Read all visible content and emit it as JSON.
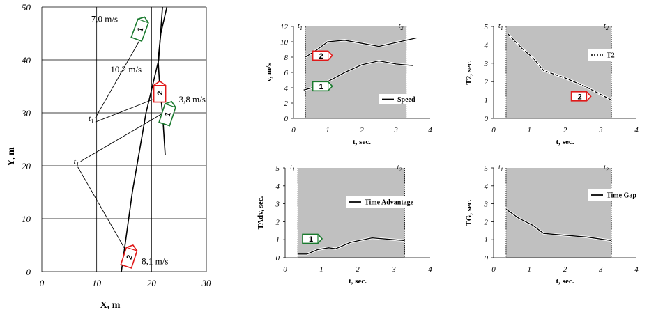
{
  "chart_data": [
    {
      "type": "line",
      "id": "trajectory",
      "xlabel": "X, m",
      "ylabel": "Y, m",
      "xlim": [
        0,
        30
      ],
      "ylim": [
        0,
        50
      ],
      "xticks": [
        "0",
        "10",
        "20",
        "30"
      ],
      "yticks": [
        "0",
        "10",
        "20",
        "30",
        "40",
        "50"
      ],
      "grid": true,
      "series": [
        {
          "x": [
            14.5,
            16.5,
            19,
            21.3,
            22
          ],
          "y": [
            0,
            15,
            30,
            40,
            50
          ]
        },
        {
          "x": [
            22.5,
            22,
            21.5,
            21.2,
            21.7,
            22.8
          ],
          "y": [
            22,
            30,
            35,
            40,
            45,
            50
          ]
        }
      ],
      "cars": [
        {
          "label": "1",
          "x": 18,
          "y": 46,
          "color": "#1a7a2e"
        },
        {
          "label": "2",
          "x": 21.5,
          "y": 34,
          "color": "#e01a1a"
        },
        {
          "label": "1",
          "x": 23,
          "y": 30,
          "color": "#1a7a2e"
        },
        {
          "label": "2",
          "x": 16,
          "y": 3,
          "color": "#e01a1a"
        }
      ],
      "annotations": [
        "7,0 m/s",
        "10,2 m/s",
        "3,8 m/s",
        "8,1 m/s",
        "t 1",
        "t 1"
      ]
    },
    {
      "type": "line",
      "id": "speed",
      "xlabel": "t, sec.",
      "ylabel": "v, m/s",
      "xlim": [
        0,
        4
      ],
      "ylim": [
        0,
        12
      ],
      "xticks": [
        "0",
        "1",
        "2",
        "3",
        "4"
      ],
      "yticks": [
        "0",
        "2",
        "4",
        "6",
        "8",
        "10",
        "12"
      ],
      "shade": [
        0.35,
        3.3
      ],
      "marker_labels": [
        "t 1",
        "t 2"
      ],
      "legend": "Speed",
      "series": [
        {
          "x": [
            0.35,
            0.7,
            1.0,
            1.5,
            2.0,
            2.5,
            3.0,
            3.6
          ],
          "y": [
            8.0,
            9.0,
            10.0,
            10.2,
            9.8,
            9.4,
            9.9,
            10.5
          ]
        },
        {
          "x": [
            0.3,
            0.7,
            1.0,
            1.5,
            2.0,
            2.5,
            3.0,
            3.5
          ],
          "y": [
            3.7,
            4.2,
            4.8,
            6.0,
            7.0,
            7.5,
            7.1,
            6.9
          ]
        }
      ],
      "cars": [
        {
          "label": "2",
          "x": 0.85,
          "y": 8.2,
          "color": "#e01a1a"
        },
        {
          "label": "1",
          "x": 0.85,
          "y": 4.2,
          "color": "#1a7a2e"
        }
      ]
    },
    {
      "type": "line",
      "id": "t2",
      "xlabel": "t, sec.",
      "ylabel": "T2, sec.",
      "xlim": [
        0,
        4
      ],
      "ylim": [
        0,
        5
      ],
      "xticks": [
        "0",
        "1",
        "2",
        "3",
        "4"
      ],
      "yticks": [
        "0",
        "1",
        "2",
        "3",
        "4",
        "5"
      ],
      "shade": [
        0.35,
        3.3
      ],
      "marker_labels": [
        "t 1",
        "t 2"
      ],
      "legend": "T2",
      "series": [
        {
          "x": [
            0.4,
            0.8,
            1.1,
            1.4,
            2.0,
            2.6,
            3.3
          ],
          "y": [
            4.6,
            3.8,
            3.3,
            2.6,
            2.2,
            1.7,
            1.0
          ]
        }
      ],
      "cars": [
        {
          "label": "2",
          "x": 2.45,
          "y": 1.2,
          "color": "#e01a1a"
        }
      ]
    },
    {
      "type": "line",
      "id": "tadv",
      "xlabel": "t, sec.",
      "ylabel": "TAdv, sec.",
      "xlim": [
        0,
        4
      ],
      "ylim": [
        0,
        5
      ],
      "xticks": [
        "0",
        "1",
        "2",
        "3",
        "4"
      ],
      "yticks": [
        "0",
        "1",
        "2",
        "3",
        "4",
        "5"
      ],
      "shade": [
        0.35,
        3.3
      ],
      "marker_labels": [
        "t 1",
        "t 2"
      ],
      "legend": "Time Advantage",
      "series": [
        {
          "x": [
            0.35,
            0.6,
            0.9,
            1.2,
            1.4,
            1.8,
            2.4,
            3.0,
            3.3
          ],
          "y": [
            0.2,
            0.2,
            0.45,
            0.55,
            0.5,
            0.85,
            1.1,
            1.0,
            0.95
          ]
        }
      ],
      "cars": [
        {
          "label": "1",
          "x": 0.75,
          "y": 1.05,
          "color": "#1a7a2e"
        }
      ]
    },
    {
      "type": "line",
      "id": "timegap",
      "xlabel": "t, sec.",
      "ylabel": "TG, sec.",
      "xlim": [
        0,
        4
      ],
      "ylim": [
        0,
        5
      ],
      "xticks": [
        "0",
        "1",
        "2",
        "3",
        "4"
      ],
      "yticks": [
        "0",
        "1",
        "2",
        "3",
        "4",
        "5"
      ],
      "shade": [
        0.35,
        3.3
      ],
      "marker_labels": [
        "t 1",
        "t 2"
      ],
      "legend": "Time Gap",
      "series": [
        {
          "x": [
            0.35,
            0.7,
            1.1,
            1.4,
            2.0,
            2.6,
            3.3
          ],
          "y": [
            2.7,
            2.2,
            1.8,
            1.35,
            1.25,
            1.15,
            0.95
          ]
        }
      ],
      "cars": []
    }
  ]
}
